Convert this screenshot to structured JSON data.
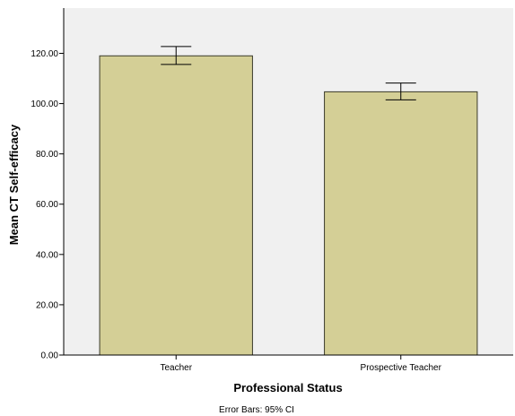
{
  "chart_data": {
    "type": "bar",
    "categories": [
      "Teacher",
      "Prospective Teacher"
    ],
    "values": [
      119.0,
      104.7
    ],
    "error_bars": [
      {
        "lower": 115.6,
        "upper": 122.7
      },
      {
        "lower": 101.5,
        "upper": 108.2
      }
    ],
    "ylabel": "Mean CT Self-efficacy",
    "xlabel": "Professional Status",
    "ylim": [
      0,
      138
    ],
    "yticks": [
      0,
      20,
      40,
      60,
      80,
      100,
      120
    ],
    "ytick_labels": [
      "0.00",
      "20.00",
      "40.00",
      "60.00",
      "80.00",
      "100.00",
      "120.00"
    ],
    "grid": false,
    "legend": "none",
    "footnote": "Error Bars: 95% CI",
    "colors": {
      "bar_fill": "#d4cf96",
      "bar_stroke": "#3a3a2a",
      "plot_background": "#f0f0f0"
    }
  }
}
